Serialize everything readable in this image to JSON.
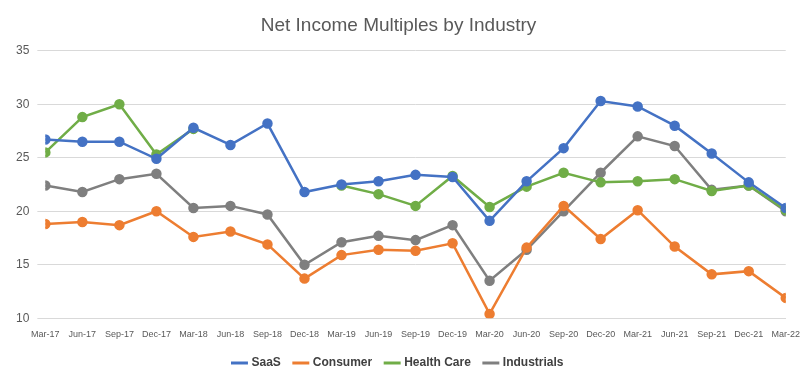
{
  "chart_data": {
    "type": "line",
    "title": "Net Income Multiples by Industry",
    "categories": [
      "Mar-17",
      "Jun-17",
      "Sep-17",
      "Dec-17",
      "Mar-18",
      "Jun-18",
      "Sep-18",
      "Dec-18",
      "Mar-19",
      "Jun-19",
      "Sep-19",
      "Dec-19",
      "Mar-20",
      "Jun-20",
      "Sep-20",
      "Dec-20",
      "Mar-21",
      "Jun-21",
      "Sep-21",
      "Dec-21",
      "Mar-22"
    ],
    "series": [
      {
        "name": "SaaS",
        "color": "#4472c4",
        "values": [
          26.7,
          26.5,
          26.5,
          24.9,
          27.8,
          26.2,
          28.2,
          21.8,
          22.5,
          22.8,
          23.4,
          23.2,
          19.1,
          22.8,
          25.9,
          30.3,
          29.8,
          28.0,
          25.4,
          22.7,
          20.3
        ]
      },
      {
        "name": "Consumer",
        "color": "#ed7d31",
        "values": [
          18.8,
          19.0,
          18.7,
          20.0,
          17.6,
          18.1,
          16.9,
          13.7,
          15.9,
          16.4,
          16.3,
          17.0,
          10.4,
          16.6,
          20.5,
          17.4,
          20.1,
          16.7,
          14.1,
          14.4,
          11.9
        ]
      },
      {
        "name": "Health Care",
        "color": "#70ad47",
        "values": [
          25.5,
          28.8,
          30.0,
          25.3,
          27.7,
          null,
          null,
          null,
          22.4,
          21.6,
          20.5,
          23.3,
          20.4,
          22.3,
          23.6,
          22.7,
          22.8,
          23.0,
          21.9,
          22.4,
          20.1
        ]
      },
      {
        "name": "Industrials",
        "color": "#7f7f7f",
        "values": [
          22.4,
          21.8,
          23.0,
          23.5,
          20.3,
          20.5,
          19.7,
          15.0,
          17.1,
          17.7,
          17.3,
          18.7,
          13.5,
          16.4,
          20.0,
          23.6,
          27.0,
          26.1,
          22.0,
          22.4,
          20.0
        ]
      }
    ],
    "ylim": [
      10,
      35
    ],
    "yticks": [
      10,
      15,
      20,
      25,
      30,
      35
    ],
    "grid": true,
    "legend": "bottom",
    "marker": "circle",
    "line_style": "solid"
  }
}
